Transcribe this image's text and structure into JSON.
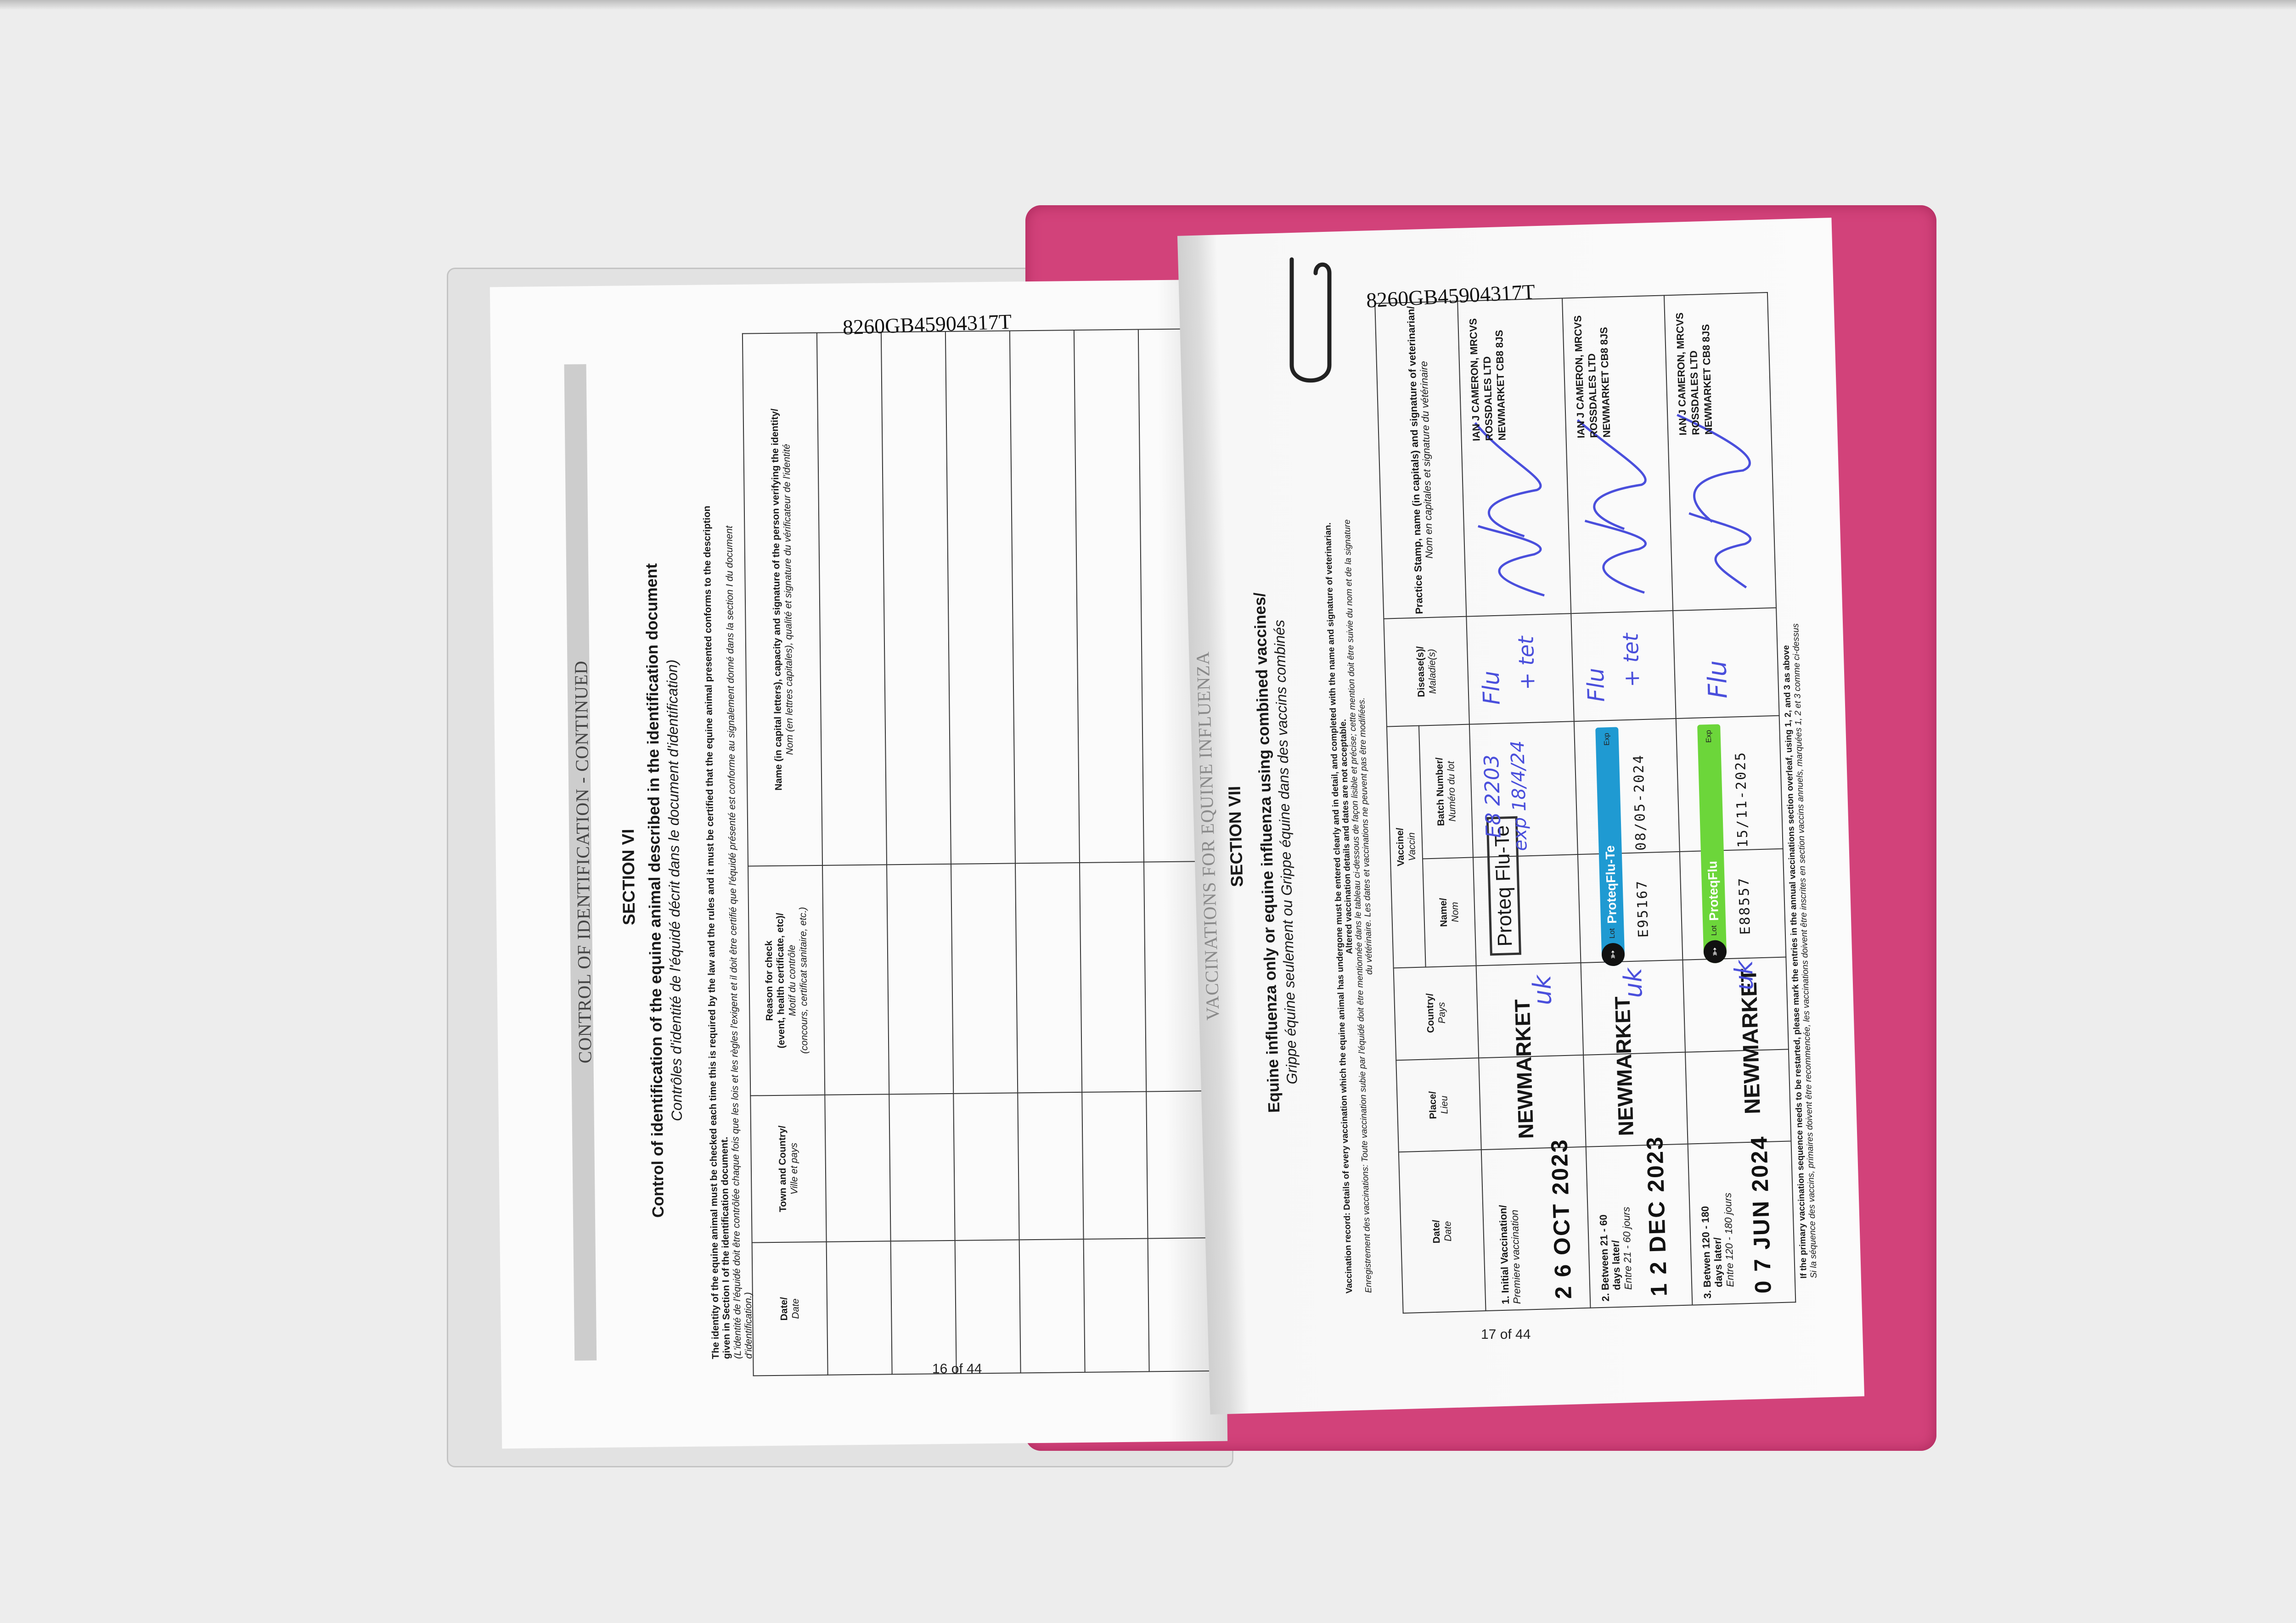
{
  "left_page": {
    "id_number": "8260GB45904317T",
    "page_number": "16 of 44",
    "running_header": "CONTROL OF IDENTIFICATION - CONTINUED",
    "section": "SECTION VI",
    "title": "Control of identification of the equine animal described in the identification document",
    "title_fr": "Contrôles d'identité de l'équidé décrit dans le document d'identification)",
    "intro_en_1": "The identity of the equine animal must be checked each time this is required by the law and the rules and it must be certified that the equine animal presented conforms to the description",
    "intro_en_2": "given in Section I of the identification document.",
    "intro_fr_1": "(L'identité de l'équidé doit être contrôlée chaque fois que les lois et les règles l'exigent et il doit être certifié que l'équidé présenté est conforme au signalement donné dans la section I du document",
    "intro_fr_2": "d'identification.)",
    "table": {
      "headers": [
        {
          "en": "Date/",
          "fr": "Date"
        },
        {
          "en": "Town and Country/",
          "fr": "Ville et pays"
        },
        {
          "en": "Reason for check",
          "en2": "(event, health certificate, etc)/",
          "fr": "Motif du contrôle",
          "fr2": "(concours, certificat sanitaire, etc.)"
        },
        {
          "en": "Name (in capital letters), capacity and signature of the person verifying the identity/",
          "fr": "Nom (en lettres capitales), qualité et signature du vérificateur de l'identité"
        }
      ],
      "rows": [
        {
          "date": "",
          "town": "",
          "reason": "",
          "name": ""
        },
        {
          "date": "",
          "town": "",
          "reason": "",
          "name": ""
        },
        {
          "date": "",
          "town": "",
          "reason": "",
          "name": ""
        },
        {
          "date": "",
          "town": "",
          "reason": "",
          "name": ""
        },
        {
          "date": "",
          "town": "",
          "reason": "",
          "name": ""
        },
        {
          "date": "",
          "town": "",
          "reason": "",
          "name": ""
        }
      ]
    }
  },
  "right_page": {
    "id_number": "8260GB45904317T",
    "page_number": "17 of 44",
    "running_header": "VACCINATIONS FOR EQUINE INFLUENZA",
    "section": "SECTION VII",
    "title": "Equine influenza only or equine influenza using combined vaccines/",
    "title_fr": "Grippe équine seulement ou Grippe équine dans des vaccins combinés",
    "intro_en_1_bold": "Vaccination record: Details of every vaccination which the equine animal has undergone must be entered clearly and in detail, and completed with the name and signature of veterinarian.",
    "intro_en_2_bold": "Altered vaccination details and dates are not acceptable.",
    "intro_fr_1": "Enregistrement des vaccinations: Toute vaccination subie par l'équidé doit être mentionnée dans le tableau ci-dessous de façon lisible et précise; cette mention doit être suivie du nom et de la signature",
    "intro_fr_2": "du vétérinaire. Les dates et vaccinations ne peuvent pas être modifiées.",
    "table": {
      "headers": {
        "date": {
          "en": "Date/",
          "fr": "Date"
        },
        "place": {
          "en": "Place/",
          "fr": "Lieu"
        },
        "country": {
          "en": "Country/",
          "fr": "Pays"
        },
        "vaccine": {
          "en": "Vaccine/",
          "fr": "Vaccin"
        },
        "name": {
          "en": "Name/",
          "fr": "Nom"
        },
        "batch": {
          "en": "Batch Number/",
          "fr": "Numéro du lot"
        },
        "disease": {
          "en": "Disease(s)/",
          "fr": "Maladie(s)"
        },
        "practice": {
          "en": "Practice Stamp, name (in capitals) and signature of veterinarian/",
          "fr": "Nom en capitales et signature du vétérinaire"
        }
      },
      "rows": [
        {
          "label_en": "1. Initial Vaccination/",
          "label_fr": "Premiere vaccination",
          "date": "2 6 OCT 2023",
          "place": "NEWMARKET",
          "country": "uk",
          "vaccine_name": "Proteq Flu-Te",
          "batch_line1": "E8 2203",
          "batch_line2": "exp 18/4/24",
          "disease_line1": "Flu",
          "disease_line2": "+ tet",
          "vet_line1": "IAN J CAMERON, MRCVS",
          "vet_line2": "ROSSDALES LTD",
          "vet_line3": "NEWMARKET CB8 8JS"
        },
        {
          "label_en": "2. Between 21 - 60",
          "label_en2": "days later/",
          "label_fr": "Entre 21 - 60 jours",
          "date": "1 2 DEC 2023",
          "place": "NEWMARKET",
          "country": "uk",
          "sticker": {
            "brand": "ProteqFlu-Te",
            "lot_label": "Lot",
            "exp_label": "Exp",
            "lot": "E95167",
            "expiry": "08/05-2024",
            "color": "#1f9ad2"
          },
          "disease_line1": "Flu",
          "disease_line2": "+ tet",
          "vet_line1": "IAN J CAMERON, MRCVS",
          "vet_line2": "ROSSDALES LTD",
          "vet_line3": "NEWMARKET CB8 8JS"
        },
        {
          "label_en": "3. Betwen 120 - 180",
          "label_en2": "days later/",
          "label_fr": "Entre 120 - 180 jours",
          "date": "0 7 JUN 2024",
          "place": "NEWMARKET",
          "country": "uk",
          "sticker": {
            "brand": "ProteqFlu",
            "lot_label": "Lot",
            "exp_label": "Exp",
            "lot": "E88557",
            "expiry": "15/11-2025",
            "color": "#6cd63a"
          },
          "disease_line1": "Flu",
          "vet_line1": "IAN J CAMERON, MRCVS",
          "vet_line2": "ROSSDALES LTD",
          "vet_line3": "NEWMARKET CB8 8JS"
        }
      ]
    },
    "footer_en": "If the primary vaccination sequence needs to be restarted, please mark the entries in the annual vaccinations section overleaf, using 1, 2, and 3 as above",
    "footer_fr": "Si la séquence des vaccins, primaires doivent être recommencée, les vaccinations doivent être inscrites en section vaccins annuels, marquées 1, 2 et 3 comme ci-dessus"
  },
  "colors": {
    "cover": "#d2427a",
    "ink_blue": "#4a4fdc",
    "sticker_blue": "#1f9ad2",
    "sticker_green": "#6cd63a"
  }
}
